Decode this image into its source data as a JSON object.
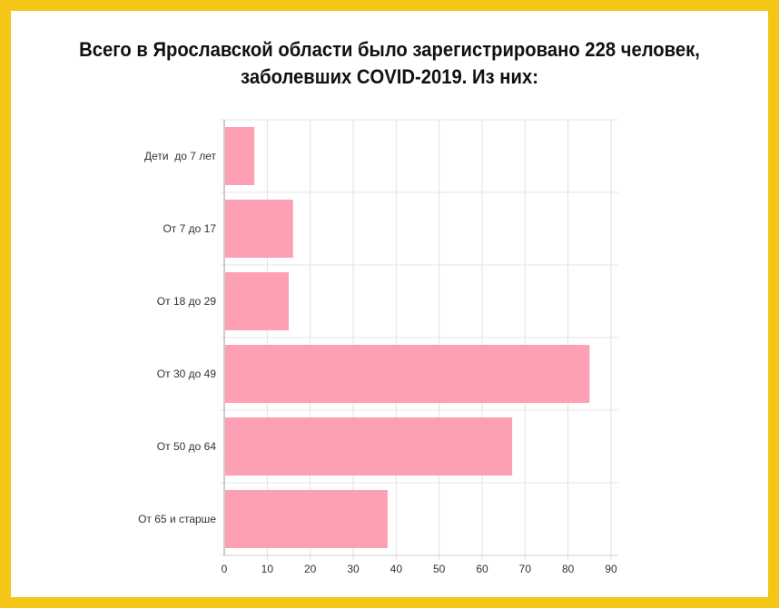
{
  "chart_data": {
    "type": "bar",
    "orientation": "horizontal",
    "title_lines": [
      "Всего в Ярославской области было зарегистрировано 228 человек,",
      "заболевших COVID-2019. Из них:"
    ],
    "categories": [
      "Дети  до 7 лет",
      "От 7 до 17",
      "От 18 до 29",
      "От 30 до 49",
      "От 50 до 64",
      "От 65 и старше"
    ],
    "values": [
      7,
      16,
      15,
      85,
      67,
      38
    ],
    "xlim": [
      0,
      90
    ],
    "x_ticks": [
      0,
      10,
      20,
      30,
      40,
      50,
      60,
      70,
      80,
      90
    ],
    "grid": true,
    "bar_color": "#fda0b3",
    "frame_color": "#f5c518"
  }
}
